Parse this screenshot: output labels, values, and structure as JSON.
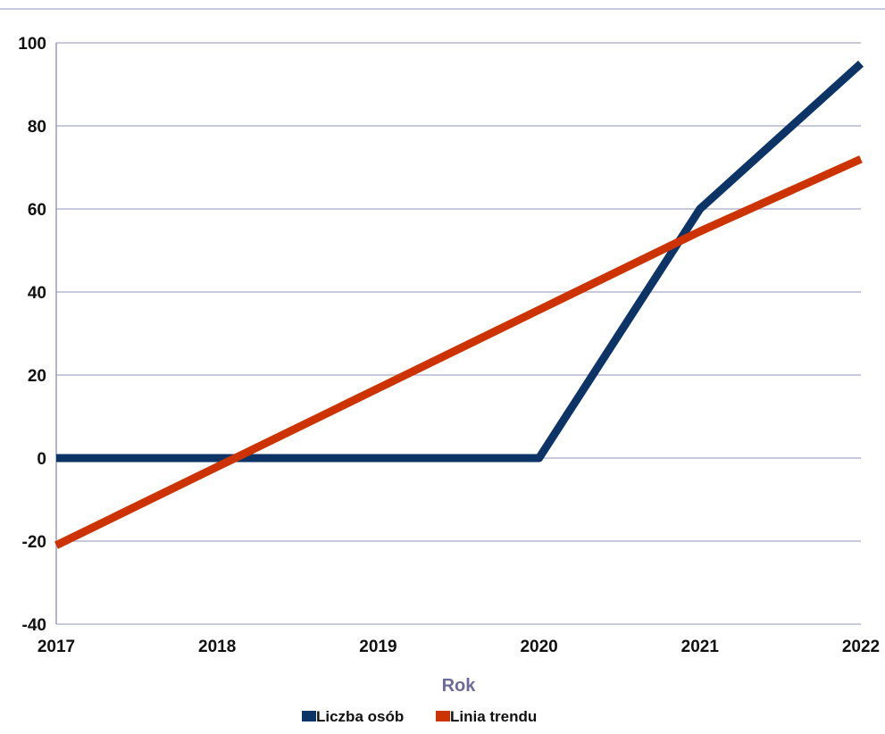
{
  "chart_data": {
    "type": "line",
    "x": [
      2017,
      2018,
      2019,
      2020,
      2021,
      2022
    ],
    "x_tick_labels": [
      "2017",
      "2018",
      "2019",
      "2020",
      "2021",
      "2022"
    ],
    "y_tick_labels": [
      "-40",
      "-20",
      "0",
      "20",
      "40",
      "60",
      "80",
      "100"
    ],
    "ylim": [
      -40,
      100
    ],
    "xlabel": "Rok",
    "ylabel": "",
    "grid": "horizontal",
    "legend_position": "bottom",
    "series": [
      {
        "name": "Liczba osób",
        "color": "#0d3466",
        "values": [
          0,
          0,
          0,
          0,
          60,
          95
        ]
      },
      {
        "name": "Linia trendu",
        "color": "#cc3300",
        "values": [
          -21,
          -2.1,
          16.8,
          35.7,
          54.6,
          72
        ]
      }
    ]
  }
}
